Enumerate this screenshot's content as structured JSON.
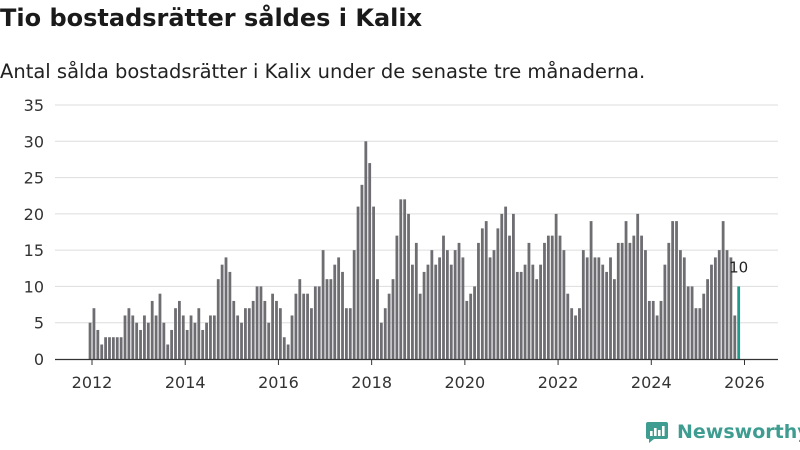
{
  "header": {
    "title": "Tio bostadsrätter såldes i Kalix",
    "subtitle": "Antal sålda bostadsrätter i Kalix under de senaste tre månaderna."
  },
  "brand": {
    "name": "Newsworthy",
    "icon": "newsworthy-logo-icon"
  },
  "colors": {
    "bar": "#6e6d72",
    "highlight": "#1f9b8d",
    "grid": "#dddddd",
    "axis": "#333333",
    "brand": "#3e9d90"
  },
  "chart_data": {
    "type": "bar",
    "title": "Tio bostadsrätter såldes i Kalix",
    "subtitle": "Antal sålda bostadsrätter i Kalix under de senaste tre månaderna.",
    "xlabel": "",
    "ylabel": "",
    "ylim": [
      0,
      35
    ],
    "yticks": [
      0,
      5,
      10,
      15,
      20,
      25,
      30,
      35
    ],
    "xticks": [
      "2012",
      "2014",
      "2016",
      "2018",
      "2020",
      "2022",
      "2024",
      "2026"
    ],
    "start": "2012-01",
    "grid": true,
    "values": [
      5,
      7,
      4,
      2,
      3,
      3,
      3,
      3,
      3,
      6,
      7,
      6,
      5,
      4,
      6,
      5,
      8,
      6,
      9,
      5,
      2,
      4,
      7,
      8,
      6,
      4,
      6,
      5,
      7,
      4,
      5,
      6,
      6,
      11,
      13,
      14,
      12,
      8,
      6,
      5,
      7,
      7,
      8,
      10,
      10,
      8,
      5,
      9,
      8,
      7,
      3,
      2,
      6,
      9,
      11,
      9,
      9,
      7,
      10,
      10,
      15,
      11,
      11,
      13,
      14,
      12,
      7,
      7,
      15,
      21,
      24,
      30,
      27,
      21,
      11,
      5,
      7,
      9,
      11,
      17,
      22,
      22,
      20,
      13,
      16,
      9,
      12,
      13,
      15,
      13,
      14,
      17,
      15,
      13,
      15,
      16,
      14,
      8,
      9,
      10,
      16,
      18,
      19,
      14,
      15,
      18,
      20,
      21,
      17,
      20,
      12,
      12,
      13,
      16,
      13,
      11,
      13,
      16,
      17,
      17,
      20,
      17,
      15,
      9,
      7,
      6,
      7,
      15,
      14,
      19,
      14,
      14,
      13,
      12,
      14,
      11,
      16,
      16,
      19,
      16,
      17,
      20,
      17,
      15,
      8,
      8,
      6,
      8,
      13,
      16,
      19,
      19,
      15,
      14,
      10,
      10,
      7,
      7,
      9,
      11,
      13,
      14,
      15,
      19,
      15,
      14,
      6,
      10
    ],
    "data_labels": [
      {
        "index": 167,
        "label": "10"
      }
    ]
  }
}
